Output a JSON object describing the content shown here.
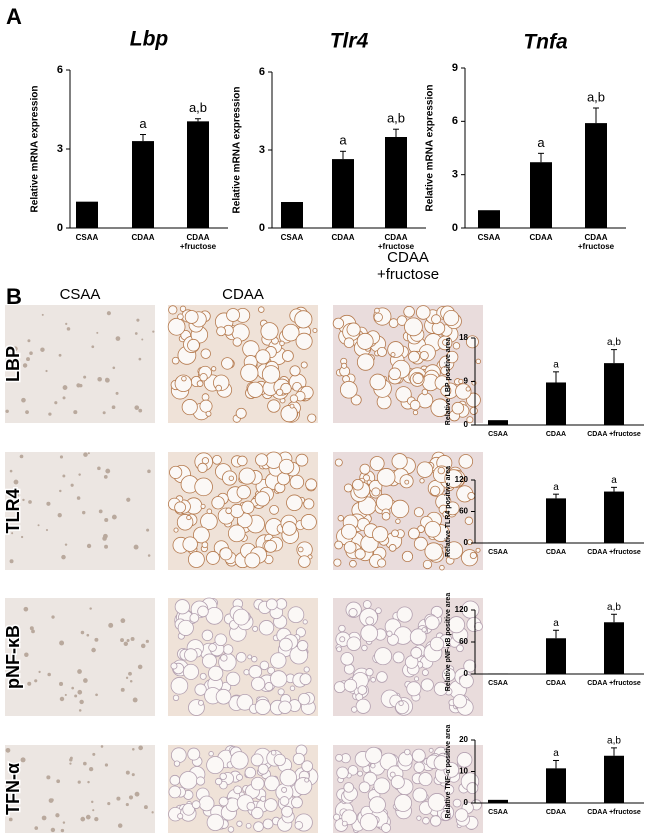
{
  "panel_labels": [
    "A",
    "B"
  ],
  "image_columns": [
    "CSAA",
    "CDAA",
    "CDAA +fructose"
  ],
  "image_rows": [
    "LBP",
    "TLR4",
    "pNF-κB",
    "TFN-α"
  ],
  "chart_data": [
    {
      "type": "bar",
      "title": "Lbp",
      "ylabel": "Relative mRNA expression",
      "categories": [
        "CSAA",
        "CDAA",
        "CDAA +fructose"
      ],
      "values": [
        1,
        3.3,
        4.05
      ],
      "errors": [
        0,
        0.25,
        0.1
      ],
      "annotations": [
        null,
        "a",
        "a,b"
      ],
      "ylim": [
        0,
        6
      ],
      "yticks": [
        0,
        3,
        6
      ],
      "color": "#000000"
    },
    {
      "type": "bar",
      "title": "Tlr4",
      "ylabel": "Relative mRNA expression",
      "categories": [
        "CSAA",
        "CDAA",
        "CDAA +fructose"
      ],
      "values": [
        1,
        2.65,
        3.5
      ],
      "errors": [
        0,
        0.3,
        0.3
      ],
      "annotations": [
        null,
        "a",
        "a,b"
      ],
      "ylim": [
        0,
        6
      ],
      "yticks": [
        0,
        3,
        6
      ],
      "color": "#000000"
    },
    {
      "type": "bar",
      "title": "Tnfa",
      "ylabel": "Relative mRNA expression",
      "categories": [
        "CSAA",
        "CDAA",
        "CDAA +fructose"
      ],
      "values": [
        1,
        3.7,
        5.9
      ],
      "errors": [
        0,
        0.5,
        0.85
      ],
      "annotations": [
        null,
        "a",
        "a,b"
      ],
      "ylim": [
        0,
        9
      ],
      "yticks": [
        0,
        3,
        6,
        9
      ],
      "color": "#000000"
    },
    {
      "type": "bar",
      "ylabel": "Relative LBP positive area",
      "categories": [
        "CSAA",
        "CDAA",
        "CDAA +fructose"
      ],
      "values": [
        1,
        8.8,
        12.8
      ],
      "errors": [
        0,
        2.2,
        2.8
      ],
      "annotations": [
        null,
        "a",
        "a,b"
      ],
      "ylim": [
        0,
        18
      ],
      "yticks": [
        0,
        9,
        18
      ],
      "color": "#000000"
    },
    {
      "type": "bar",
      "ylabel": "Relative TLR4 positive area",
      "categories": [
        "CSAA",
        "CDAA",
        "CDAA +fructose"
      ],
      "values": [
        1,
        85,
        98
      ],
      "errors": [
        0,
        8,
        8
      ],
      "annotations": [
        null,
        "a",
        "a"
      ],
      "ylim": [
        0,
        120
      ],
      "yticks": [
        0,
        60,
        120
      ],
      "color": "#000000"
    },
    {
      "type": "bar",
      "ylabel": "Relative pNF-κB positive area",
      "categories": [
        "CSAA",
        "CDAA",
        "CDAA +fructose"
      ],
      "values": [
        1,
        67,
        97
      ],
      "errors": [
        0,
        15,
        15
      ],
      "annotations": [
        null,
        "a",
        "a,b"
      ],
      "ylim": [
        0,
        120
      ],
      "yticks": [
        0,
        60,
        120
      ],
      "color": "#000000"
    },
    {
      "type": "bar",
      "ylabel": "Relative TNF-α positive area",
      "categories": [
        "CSAA",
        "CDAA",
        "CDAA +fructose"
      ],
      "values": [
        1,
        11,
        15
      ],
      "errors": [
        0,
        2.5,
        2.5
      ],
      "annotations": [
        null,
        "a",
        "a,b"
      ],
      "ylim": [
        0,
        20
      ],
      "yticks": [
        0,
        10,
        20
      ],
      "color": "#000000"
    }
  ]
}
